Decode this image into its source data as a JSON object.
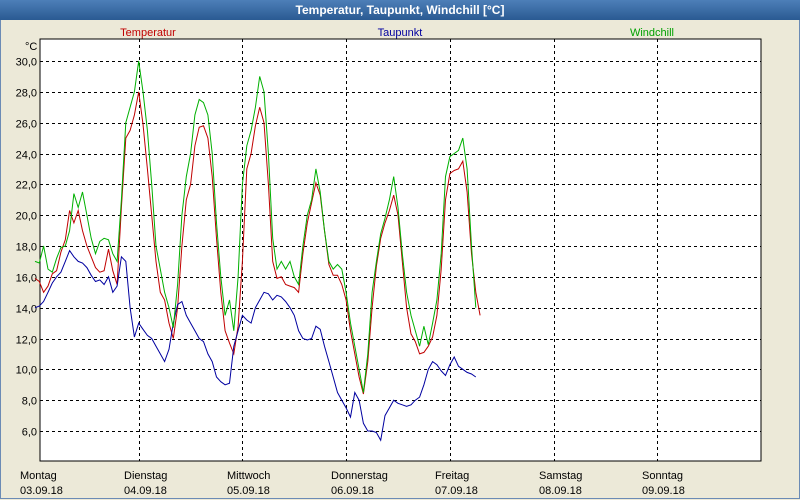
{
  "window": {
    "title": "Temperatur, Taupunkt, Windchill [°C]"
  },
  "chart_data": {
    "type": "line",
    "title": "Temperatur, Taupunkt, Windchill [°C]",
    "ylabel": "°C",
    "ylim": [
      4.0,
      32.0
    ],
    "yticks": [
      6.0,
      8.0,
      10.0,
      12.0,
      14.0,
      16.0,
      18.0,
      20.0,
      22.0,
      24.0,
      26.0,
      28.0,
      30.0
    ],
    "ytick_labels": [
      "6,0",
      "8,0",
      "10,0",
      "12,0",
      "14,0",
      "16,0",
      "18,0",
      "20,0",
      "22,0",
      "24,0",
      "26,0",
      "28,0",
      "30,0"
    ],
    "x_unit": "hours since 03.09.18 00:00",
    "xlim": [
      0,
      168
    ],
    "grid": true,
    "day_labels": [
      {
        "day": "Montag",
        "date": "03.09.18",
        "x": 0
      },
      {
        "day": "Dienstag",
        "date": "04.09.18",
        "x": 24
      },
      {
        "day": "Mittwoch",
        "date": "05.09.18",
        "x": 48
      },
      {
        "day": "Donnerstag",
        "date": "06.09.18",
        "x": 72
      },
      {
        "day": "Freitag",
        "date": "07.09.18",
        "x": 96
      },
      {
        "day": "Samstag",
        "date": "08.09.18",
        "x": 120
      },
      {
        "day": "Sonntag",
        "date": "09.09.18",
        "x": 144
      }
    ],
    "series": [
      {
        "name": "Temperatur",
        "color": "#c00000",
        "points": [
          [
            0,
            15.9
          ],
          [
            1,
            15.7
          ],
          [
            2,
            15.0
          ],
          [
            3,
            15.4
          ],
          [
            4,
            16.2
          ],
          [
            5,
            16.4
          ],
          [
            6,
            17.6
          ],
          [
            7,
            18.4
          ],
          [
            8,
            20.3
          ],
          [
            9,
            19.5
          ],
          [
            10,
            20.3
          ],
          [
            11,
            19.0
          ],
          [
            12,
            18.0
          ],
          [
            13,
            17.3
          ],
          [
            14,
            16.6
          ],
          [
            15,
            16.3
          ],
          [
            16,
            16.4
          ],
          [
            17,
            17.8
          ],
          [
            18,
            16.4
          ],
          [
            19,
            15.5
          ],
          [
            20,
            20.5
          ],
          [
            21,
            25.0
          ],
          [
            22,
            25.5
          ],
          [
            23,
            26.5
          ],
          [
            24,
            28.0
          ],
          [
            25,
            25.9
          ],
          [
            26,
            23.0
          ],
          [
            27,
            20.0
          ],
          [
            28,
            17.0
          ],
          [
            29,
            15.0
          ],
          [
            30,
            14.5
          ],
          [
            31,
            13.0
          ],
          [
            32,
            12.0
          ],
          [
            33,
            14.0
          ],
          [
            34,
            18.0
          ],
          [
            35,
            21.0
          ],
          [
            36,
            22.0
          ],
          [
            37,
            24.5
          ],
          [
            38,
            25.7
          ],
          [
            39,
            25.8
          ],
          [
            40,
            25.0
          ],
          [
            41,
            22.5
          ],
          [
            42,
            18.5
          ],
          [
            43,
            15.0
          ],
          [
            44,
            12.5
          ],
          [
            45,
            11.7
          ],
          [
            46,
            11.0
          ],
          [
            47,
            12.8
          ],
          [
            48,
            17.0
          ],
          [
            49,
            23.0
          ],
          [
            50,
            24.0
          ],
          [
            51,
            25.8
          ],
          [
            52,
            27.0
          ],
          [
            53,
            26.0
          ],
          [
            54,
            22.0
          ],
          [
            55,
            17.0
          ],
          [
            56,
            15.9
          ],
          [
            57,
            16.0
          ],
          [
            58,
            15.5
          ],
          [
            59,
            15.4
          ],
          [
            60,
            15.3
          ],
          [
            61,
            15.0
          ],
          [
            62,
            17.5
          ],
          [
            63,
            19.5
          ],
          [
            64,
            20.8
          ],
          [
            65,
            22.1
          ],
          [
            66,
            21.3
          ],
          [
            67,
            19.0
          ],
          [
            68,
            16.8
          ],
          [
            69,
            16.1
          ],
          [
            70,
            16.1
          ],
          [
            71,
            15.5
          ],
          [
            72,
            14.5
          ],
          [
            73,
            12.5
          ],
          [
            74,
            11.0
          ],
          [
            75,
            9.5
          ],
          [
            76,
            8.4
          ],
          [
            77,
            10.5
          ],
          [
            78,
            14.0
          ],
          [
            79,
            16.7
          ],
          [
            80,
            18.5
          ],
          [
            81,
            19.5
          ],
          [
            82,
            20.3
          ],
          [
            83,
            21.3
          ],
          [
            84,
            20.0
          ],
          [
            85,
            17.0
          ],
          [
            86,
            14.0
          ],
          [
            87,
            12.3
          ],
          [
            88,
            11.8
          ],
          [
            89,
            11.0
          ],
          [
            90,
            11.1
          ],
          [
            91,
            11.5
          ],
          [
            92,
            12.1
          ],
          [
            93,
            13.5
          ],
          [
            94,
            16.5
          ],
          [
            95,
            21.0
          ],
          [
            96,
            22.7
          ],
          [
            97,
            22.9
          ],
          [
            98,
            23.0
          ],
          [
            99,
            23.5
          ],
          [
            100,
            21.5
          ],
          [
            101,
            17.5
          ],
          [
            102,
            15.0
          ],
          [
            103,
            13.5
          ]
        ]
      },
      {
        "name": "Taupunkt",
        "color": "#0000a0",
        "points": [
          [
            0,
            14.0
          ],
          [
            1,
            14.1
          ],
          [
            2,
            14.4
          ],
          [
            3,
            15.0
          ],
          [
            4,
            15.6
          ],
          [
            5,
            16.0
          ],
          [
            6,
            16.3
          ],
          [
            7,
            17.0
          ],
          [
            8,
            17.7
          ],
          [
            9,
            17.3
          ],
          [
            10,
            17.0
          ],
          [
            11,
            16.9
          ],
          [
            12,
            16.6
          ],
          [
            13,
            16.1
          ],
          [
            14,
            15.7
          ],
          [
            15,
            15.8
          ],
          [
            16,
            15.5
          ],
          [
            17,
            16.0
          ],
          [
            18,
            15.0
          ],
          [
            19,
            15.4
          ],
          [
            20,
            17.3
          ],
          [
            21,
            17.0
          ],
          [
            22,
            14.0
          ],
          [
            23,
            12.1
          ],
          [
            24,
            13.0
          ],
          [
            25,
            12.6
          ],
          [
            26,
            12.2
          ],
          [
            27,
            12.0
          ],
          [
            28,
            11.5
          ],
          [
            29,
            11.0
          ],
          [
            30,
            10.5
          ],
          [
            31,
            11.3
          ],
          [
            32,
            13.0
          ],
          [
            33,
            14.2
          ],
          [
            34,
            14.4
          ],
          [
            35,
            13.5
          ],
          [
            36,
            13.0
          ],
          [
            37,
            12.5
          ],
          [
            38,
            12.0
          ],
          [
            39,
            11.8
          ],
          [
            40,
            11.0
          ],
          [
            41,
            10.5
          ],
          [
            42,
            9.5
          ],
          [
            43,
            9.2
          ],
          [
            44,
            9.0
          ],
          [
            45,
            9.1
          ],
          [
            46,
            11.5
          ],
          [
            47,
            12.5
          ],
          [
            48,
            13.5
          ],
          [
            49,
            13.2
          ],
          [
            50,
            13.0
          ],
          [
            51,
            14.0
          ],
          [
            52,
            14.5
          ],
          [
            53,
            15.0
          ],
          [
            54,
            14.9
          ],
          [
            55,
            14.5
          ],
          [
            56,
            14.8
          ],
          [
            57,
            14.7
          ],
          [
            58,
            14.4
          ],
          [
            59,
            14.0
          ],
          [
            60,
            13.5
          ],
          [
            61,
            12.5
          ],
          [
            62,
            12.0
          ],
          [
            63,
            11.9
          ],
          [
            64,
            12.0
          ],
          [
            65,
            12.8
          ],
          [
            66,
            12.6
          ],
          [
            67,
            11.5
          ],
          [
            68,
            10.5
          ],
          [
            69,
            9.5
          ],
          [
            70,
            8.5
          ],
          [
            71,
            8.0
          ],
          [
            72,
            7.5
          ],
          [
            73,
            6.9
          ],
          [
            74,
            8.5
          ],
          [
            75,
            8.0
          ],
          [
            76,
            6.5
          ],
          [
            77,
            6.0
          ],
          [
            78,
            6.0
          ],
          [
            79,
            5.9
          ],
          [
            80,
            5.4
          ],
          [
            81,
            7.0
          ],
          [
            82,
            7.5
          ],
          [
            83,
            8.0
          ],
          [
            84,
            7.8
          ],
          [
            85,
            7.7
          ],
          [
            86,
            7.6
          ],
          [
            87,
            7.7
          ],
          [
            88,
            8.0
          ],
          [
            89,
            8.2
          ],
          [
            90,
            9.0
          ],
          [
            91,
            10.0
          ],
          [
            92,
            10.5
          ],
          [
            93,
            10.3
          ],
          [
            94,
            9.9
          ],
          [
            95,
            9.6
          ],
          [
            96,
            10.3
          ],
          [
            97,
            10.8
          ],
          [
            98,
            10.2
          ],
          [
            99,
            10.0
          ],
          [
            100,
            9.8
          ],
          [
            101,
            9.7
          ],
          [
            102,
            9.5
          ]
        ]
      },
      {
        "name": "Windchill",
        "color": "#00b000",
        "points": [
          [
            0,
            17.0
          ],
          [
            1,
            16.9
          ],
          [
            2,
            18.0
          ],
          [
            3,
            16.5
          ],
          [
            4,
            16.3
          ],
          [
            5,
            17.2
          ],
          [
            6,
            17.9
          ],
          [
            7,
            18.0
          ],
          [
            8,
            19.0
          ],
          [
            9,
            21.4
          ],
          [
            10,
            20.5
          ],
          [
            11,
            21.5
          ],
          [
            12,
            20.0
          ],
          [
            13,
            18.5
          ],
          [
            14,
            17.5
          ],
          [
            15,
            18.3
          ],
          [
            16,
            18.5
          ],
          [
            17,
            18.4
          ],
          [
            18,
            17.5
          ],
          [
            19,
            17.0
          ],
          [
            20,
            21.0
          ],
          [
            21,
            26.0
          ],
          [
            22,
            27.0
          ],
          [
            23,
            28.0
          ],
          [
            24,
            30.0
          ],
          [
            25,
            28.0
          ],
          [
            26,
            25.5
          ],
          [
            27,
            22.0
          ],
          [
            28,
            18.0
          ],
          [
            29,
            16.5
          ],
          [
            30,
            15.0
          ],
          [
            31,
            14.0
          ],
          [
            32,
            12.7
          ],
          [
            33,
            15.5
          ],
          [
            34,
            20.0
          ],
          [
            35,
            22.5
          ],
          [
            36,
            24.0
          ],
          [
            37,
            26.5
          ],
          [
            38,
            27.5
          ],
          [
            39,
            27.3
          ],
          [
            40,
            26.5
          ],
          [
            41,
            24.0
          ],
          [
            42,
            19.5
          ],
          [
            43,
            16.0
          ],
          [
            44,
            13.5
          ],
          [
            45,
            14.5
          ],
          [
            46,
            12.5
          ],
          [
            47,
            16.0
          ],
          [
            48,
            22.0
          ],
          [
            49,
            24.5
          ],
          [
            50,
            25.5
          ],
          [
            51,
            27.0
          ],
          [
            52,
            29.0
          ],
          [
            53,
            28.0
          ],
          [
            54,
            24.0
          ],
          [
            55,
            18.5
          ],
          [
            56,
            16.5
          ],
          [
            57,
            17.0
          ],
          [
            58,
            16.5
          ],
          [
            59,
            17.0
          ],
          [
            60,
            16.0
          ],
          [
            61,
            15.5
          ],
          [
            62,
            18.0
          ],
          [
            63,
            20.0
          ],
          [
            64,
            21.0
          ],
          [
            65,
            23.0
          ],
          [
            66,
            21.5
          ],
          [
            67,
            19.0
          ],
          [
            68,
            17.0
          ],
          [
            69,
            16.5
          ],
          [
            70,
            16.8
          ],
          [
            71,
            16.5
          ],
          [
            72,
            15.0
          ],
          [
            73,
            13.0
          ],
          [
            74,
            11.5
          ],
          [
            75,
            10.0
          ],
          [
            76,
            8.5
          ],
          [
            77,
            11.0
          ],
          [
            78,
            15.0
          ],
          [
            79,
            17.0
          ],
          [
            80,
            18.8
          ],
          [
            81,
            19.8
          ],
          [
            82,
            21.0
          ],
          [
            83,
            22.5
          ],
          [
            84,
            20.5
          ],
          [
            85,
            17.5
          ],
          [
            86,
            15.0
          ],
          [
            87,
            13.5
          ],
          [
            88,
            12.5
          ],
          [
            89,
            11.5
          ],
          [
            90,
            12.8
          ],
          [
            91,
            11.6
          ],
          [
            92,
            13.0
          ],
          [
            93,
            14.5
          ],
          [
            94,
            17.5
          ],
          [
            95,
            22.5
          ],
          [
            96,
            23.8
          ],
          [
            97,
            24.0
          ],
          [
            98,
            24.2
          ],
          [
            99,
            25.0
          ],
          [
            100,
            23.0
          ],
          [
            101,
            18.0
          ],
          [
            102,
            14.0
          ]
        ]
      }
    ]
  }
}
